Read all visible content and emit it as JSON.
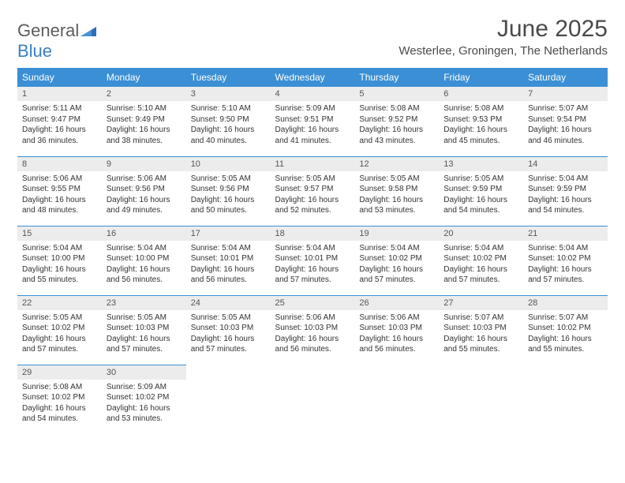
{
  "logo": {
    "part1": "General",
    "part2": "Blue"
  },
  "title": "June 2025",
  "location": "Westerlee, Groningen, The Netherlands",
  "colors": {
    "header_bg": "#3b8fd4",
    "header_fg": "#ffffff",
    "daynum_bg": "#ececec",
    "rule": "#3b8fd4",
    "logo_gray": "#5c5c5c",
    "logo_blue": "#3b7fc4"
  },
  "weekdays": [
    "Sunday",
    "Monday",
    "Tuesday",
    "Wednesday",
    "Thursday",
    "Friday",
    "Saturday"
  ],
  "weeks": [
    [
      {
        "n": "1",
        "sr": "5:11 AM",
        "ss": "9:47 PM",
        "dl": "16 hours and 36 minutes."
      },
      {
        "n": "2",
        "sr": "5:10 AM",
        "ss": "9:49 PM",
        "dl": "16 hours and 38 minutes."
      },
      {
        "n": "3",
        "sr": "5:10 AM",
        "ss": "9:50 PM",
        "dl": "16 hours and 40 minutes."
      },
      {
        "n": "4",
        "sr": "5:09 AM",
        "ss": "9:51 PM",
        "dl": "16 hours and 41 minutes."
      },
      {
        "n": "5",
        "sr": "5:08 AM",
        "ss": "9:52 PM",
        "dl": "16 hours and 43 minutes."
      },
      {
        "n": "6",
        "sr": "5:08 AM",
        "ss": "9:53 PM",
        "dl": "16 hours and 45 minutes."
      },
      {
        "n": "7",
        "sr": "5:07 AM",
        "ss": "9:54 PM",
        "dl": "16 hours and 46 minutes."
      }
    ],
    [
      {
        "n": "8",
        "sr": "5:06 AM",
        "ss": "9:55 PM",
        "dl": "16 hours and 48 minutes."
      },
      {
        "n": "9",
        "sr": "5:06 AM",
        "ss": "9:56 PM",
        "dl": "16 hours and 49 minutes."
      },
      {
        "n": "10",
        "sr": "5:05 AM",
        "ss": "9:56 PM",
        "dl": "16 hours and 50 minutes."
      },
      {
        "n": "11",
        "sr": "5:05 AM",
        "ss": "9:57 PM",
        "dl": "16 hours and 52 minutes."
      },
      {
        "n": "12",
        "sr": "5:05 AM",
        "ss": "9:58 PM",
        "dl": "16 hours and 53 minutes."
      },
      {
        "n": "13",
        "sr": "5:05 AM",
        "ss": "9:59 PM",
        "dl": "16 hours and 54 minutes."
      },
      {
        "n": "14",
        "sr": "5:04 AM",
        "ss": "9:59 PM",
        "dl": "16 hours and 54 minutes."
      }
    ],
    [
      {
        "n": "15",
        "sr": "5:04 AM",
        "ss": "10:00 PM",
        "dl": "16 hours and 55 minutes."
      },
      {
        "n": "16",
        "sr": "5:04 AM",
        "ss": "10:00 PM",
        "dl": "16 hours and 56 minutes."
      },
      {
        "n": "17",
        "sr": "5:04 AM",
        "ss": "10:01 PM",
        "dl": "16 hours and 56 minutes."
      },
      {
        "n": "18",
        "sr": "5:04 AM",
        "ss": "10:01 PM",
        "dl": "16 hours and 57 minutes."
      },
      {
        "n": "19",
        "sr": "5:04 AM",
        "ss": "10:02 PM",
        "dl": "16 hours and 57 minutes."
      },
      {
        "n": "20",
        "sr": "5:04 AM",
        "ss": "10:02 PM",
        "dl": "16 hours and 57 minutes."
      },
      {
        "n": "21",
        "sr": "5:04 AM",
        "ss": "10:02 PM",
        "dl": "16 hours and 57 minutes."
      }
    ],
    [
      {
        "n": "22",
        "sr": "5:05 AM",
        "ss": "10:02 PM",
        "dl": "16 hours and 57 minutes."
      },
      {
        "n": "23",
        "sr": "5:05 AM",
        "ss": "10:03 PM",
        "dl": "16 hours and 57 minutes."
      },
      {
        "n": "24",
        "sr": "5:05 AM",
        "ss": "10:03 PM",
        "dl": "16 hours and 57 minutes."
      },
      {
        "n": "25",
        "sr": "5:06 AM",
        "ss": "10:03 PM",
        "dl": "16 hours and 56 minutes."
      },
      {
        "n": "26",
        "sr": "5:06 AM",
        "ss": "10:03 PM",
        "dl": "16 hours and 56 minutes."
      },
      {
        "n": "27",
        "sr": "5:07 AM",
        "ss": "10:03 PM",
        "dl": "16 hours and 55 minutes."
      },
      {
        "n": "28",
        "sr": "5:07 AM",
        "ss": "10:02 PM",
        "dl": "16 hours and 55 minutes."
      }
    ],
    [
      {
        "n": "29",
        "sr": "5:08 AM",
        "ss": "10:02 PM",
        "dl": "16 hours and 54 minutes."
      },
      {
        "n": "30",
        "sr": "5:09 AM",
        "ss": "10:02 PM",
        "dl": "16 hours and 53 minutes."
      },
      null,
      null,
      null,
      null,
      null
    ]
  ],
  "labels": {
    "sunrise": "Sunrise:",
    "sunset": "Sunset:",
    "daylight": "Daylight:"
  }
}
